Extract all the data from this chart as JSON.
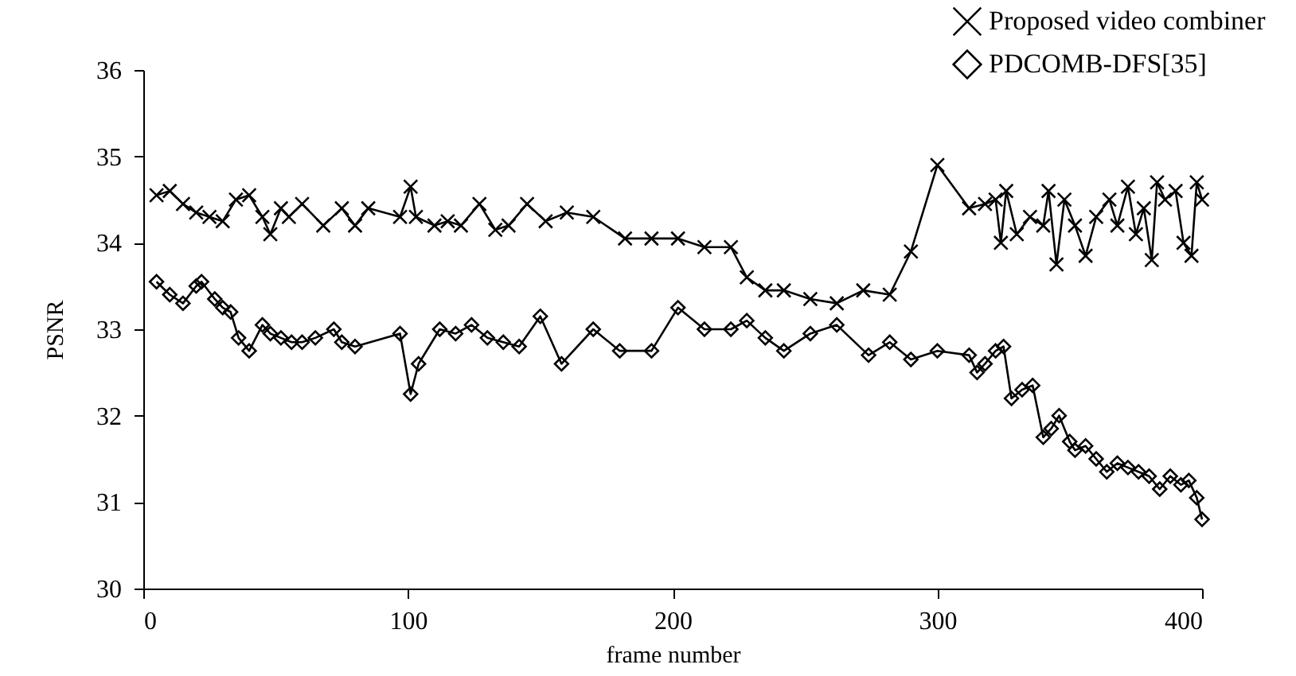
{
  "chart_data": {
    "type": "line",
    "xlabel": "frame number",
    "ylabel": "PSNR",
    "xlim": [
      0,
      400
    ],
    "xticks": [
      0,
      100,
      200,
      300,
      400
    ],
    "ylim": [
      30,
      36
    ],
    "yticks": [
      30,
      31,
      32,
      33,
      34,
      35,
      36
    ],
    "grid": false,
    "legend": "top right",
    "line_style": "solid",
    "series": [
      {
        "name": "Proposed video combiner",
        "color": "#000000",
        "marker": "cross",
        "x": [
          5,
          10,
          15,
          20,
          25,
          30,
          35,
          40,
          45,
          48,
          52,
          55,
          60,
          68,
          75,
          80,
          85,
          97,
          101,
          103,
          110,
          115,
          120,
          127,
          133,
          138,
          145,
          152,
          160,
          170,
          182,
          192,
          202,
          212,
          222,
          228,
          235,
          242,
          252,
          262,
          272,
          282,
          290,
          300,
          312,
          318,
          322,
          324,
          326,
          330,
          335,
          340,
          342,
          345,
          348,
          352,
          356,
          360,
          365,
          368,
          372,
          375,
          378,
          381,
          383,
          386,
          390,
          393,
          396,
          398,
          400
        ],
        "values": [
          34.55,
          34.6,
          34.45,
          34.35,
          34.3,
          34.25,
          34.5,
          34.55,
          34.3,
          34.1,
          34.4,
          34.3,
          34.45,
          34.2,
          34.4,
          34.2,
          34.4,
          34.3,
          34.65,
          34.3,
          34.2,
          34.25,
          34.2,
          34.45,
          34.15,
          34.2,
          34.45,
          34.25,
          34.35,
          34.3,
          34.05,
          34.05,
          34.05,
          33.95,
          33.95,
          33.6,
          33.45,
          33.45,
          33.35,
          33.3,
          33.45,
          33.4,
          33.9,
          34.9,
          34.4,
          34.45,
          34.5,
          34.0,
          34.6,
          34.1,
          34.3,
          34.2,
          34.6,
          33.75,
          34.5,
          34.2,
          33.85,
          34.3,
          34.5,
          34.2,
          34.65,
          34.1,
          34.4,
          33.8,
          34.7,
          34.5,
          34.6,
          34.0,
          33.85,
          34.7,
          34.5
        ]
      },
      {
        "name": "PDCOMB-DFS[35]",
        "color": "#000000",
        "marker": "diamond",
        "x": [
          5,
          10,
          15,
          20,
          22,
          27,
          30,
          33,
          36,
          40,
          45,
          48,
          52,
          56,
          60,
          65,
          72,
          75,
          80,
          97,
          101,
          104,
          112,
          118,
          124,
          130,
          136,
          142,
          150,
          158,
          170,
          180,
          192,
          202,
          212,
          222,
          228,
          235,
          242,
          252,
          262,
          274,
          282,
          290,
          300,
          312,
          315,
          318,
          322,
          325,
          328,
          332,
          336,
          340,
          343,
          346,
          350,
          352,
          356,
          360,
          364,
          368,
          372,
          376,
          380,
          384,
          388,
          392,
          395,
          398,
          400
        ],
        "values": [
          33.55,
          33.4,
          33.3,
          33.5,
          33.55,
          33.35,
          33.25,
          33.2,
          32.9,
          32.75,
          33.05,
          32.95,
          32.9,
          32.85,
          32.85,
          32.9,
          33.0,
          32.85,
          32.8,
          32.95,
          32.25,
          32.6,
          33.0,
          32.95,
          33.05,
          32.9,
          32.85,
          32.8,
          33.15,
          32.6,
          33.0,
          32.75,
          32.75,
          33.25,
          33.0,
          33.0,
          33.1,
          32.9,
          32.75,
          32.95,
          33.05,
          32.7,
          32.85,
          32.65,
          32.75,
          32.7,
          32.5,
          32.6,
          32.75,
          32.8,
          32.2,
          32.3,
          32.35,
          31.75,
          31.85,
          32.0,
          31.7,
          31.6,
          31.65,
          31.5,
          31.35,
          31.45,
          31.4,
          31.35,
          31.3,
          31.15,
          31.3,
          31.2,
          31.25,
          31.05,
          30.8
        ]
      }
    ]
  }
}
